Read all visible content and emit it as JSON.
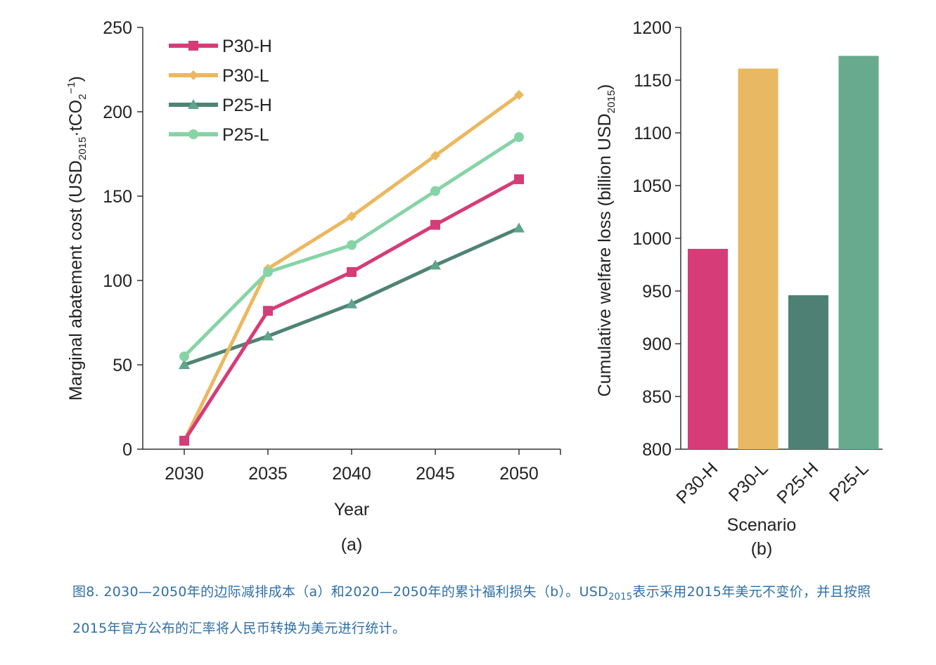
{
  "chart_data": [
    {
      "type": "line",
      "panel_label": "(a)",
      "xlabel": "Year",
      "ylabel": "Marginal abatement cost (USD",
      "ylabel_sub": "2015",
      "ylabel_mid": "·tCO",
      "ylabel_sub2": "2",
      "ylabel_sup": "−1",
      "ylabel_end": ")",
      "x": [
        2030,
        2035,
        2040,
        2045,
        2050
      ],
      "ylim": [
        0,
        250
      ],
      "yticks": [
        0,
        50,
        100,
        150,
        200,
        250
      ],
      "legend_position": "top-left",
      "grid": false,
      "series": [
        {
          "name": "P30-H",
          "marker": "square",
          "color": "#d63c77",
          "values": [
            5,
            82,
            105,
            133,
            160
          ]
        },
        {
          "name": "P30-L",
          "marker": "diamond",
          "color": "#ebb860",
          "values": [
            5,
            107,
            138,
            174,
            210
          ]
        },
        {
          "name": "P25-H",
          "marker": "triangle",
          "color": "#4e8473",
          "values": [
            50,
            67,
            86,
            109,
            131
          ]
        },
        {
          "name": "P25-L",
          "marker": "circle",
          "color": "#86d4a6",
          "values": [
            55,
            105,
            121,
            153,
            185
          ]
        }
      ]
    },
    {
      "type": "bar",
      "panel_label": "(b)",
      "xlabel": "Scenario",
      "ylabel": "Cumulative welfare loss (billion USD",
      "ylabel_sub": "2015",
      "ylabel_end": ")",
      "categories": [
        "P30-H",
        "P30-L",
        "P25-H",
        "P25-L"
      ],
      "values": [
        990,
        1161,
        946,
        1173
      ],
      "colors": [
        "#d63c77",
        "#e9b862",
        "#4e8173",
        "#67aa8d"
      ],
      "ylim": [
        800,
        1200
      ],
      "yticks": [
        800,
        850,
        900,
        950,
        1000,
        1050,
        1100,
        1150,
        1200
      ],
      "grid": false
    }
  ],
  "caption": {
    "part1": "图8. 2030—2050年的边际减排成本（a）和2020—2050年的累计福利损失（b）。USD",
    "sub": "2015",
    "part2": "表示采用2015年美元不变价，并且按照2015年官方公布的汇率将人民币转换为美元进行统计。"
  }
}
